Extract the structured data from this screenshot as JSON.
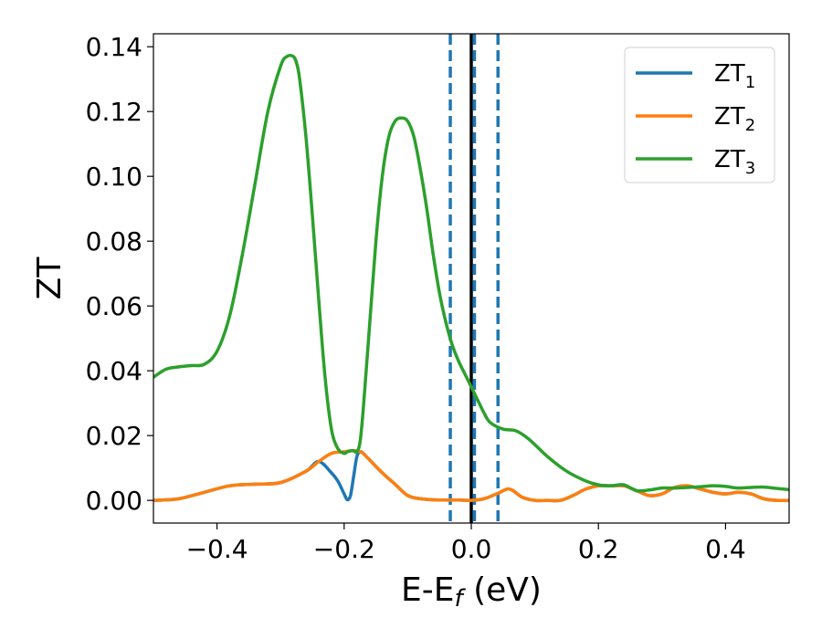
{
  "chart_data": {
    "type": "line",
    "title": "",
    "xlabel": "E-E",
    "xlabel_sub": "f",
    "xlabel_unit": " (eV)",
    "ylabel": "ZT",
    "xlim": [
      -0.5,
      0.5
    ],
    "ylim": [
      -0.007,
      0.144
    ],
    "xticks": [
      -0.4,
      -0.2,
      0.0,
      0.2,
      0.4
    ],
    "xtick_labels": [
      "−0.4",
      "−0.2",
      "0.0",
      "0.2",
      "0.4"
    ],
    "yticks": [
      0.0,
      0.02,
      0.04,
      0.06,
      0.08,
      0.1,
      0.12,
      0.14
    ],
    "ytick_labels": [
      "0.00",
      "0.02",
      "0.04",
      "0.06",
      "0.08",
      "0.10",
      "0.12",
      "0.14"
    ],
    "grid": false,
    "legend_position": "top-right",
    "vlines": [
      {
        "x": 0.0,
        "style": "solid",
        "color": "#000000"
      },
      {
        "x": -0.033,
        "style": "dashed",
        "color": "#1f77b4"
      },
      {
        "x": 0.005,
        "style": "dashed",
        "color": "#1f77b4"
      },
      {
        "x": 0.042,
        "style": "dashed",
        "color": "#1f77b4"
      }
    ],
    "series": [
      {
        "name": "ZT",
        "sub": "1",
        "color": "#1f77b4",
        "x": [
          -0.5,
          -0.46,
          -0.42,
          -0.38,
          -0.34,
          -0.3,
          -0.26,
          -0.24,
          -0.22,
          -0.21,
          -0.2,
          -0.195,
          -0.19,
          -0.185,
          -0.18,
          -0.175,
          -0.17,
          -0.16,
          -0.14,
          -0.12,
          -0.1,
          -0.08,
          -0.06,
          -0.04,
          -0.02,
          0.0,
          0.02,
          0.04,
          0.06,
          0.08,
          0.1,
          0.12,
          0.14,
          0.16,
          0.18,
          0.2,
          0.22,
          0.24,
          0.26,
          0.28,
          0.3,
          0.32,
          0.34,
          0.36,
          0.38,
          0.4,
          0.42,
          0.44,
          0.46,
          0.48,
          0.5
        ],
        "y": [
          0.0,
          0.0005,
          0.0025,
          0.0045,
          0.005,
          0.0055,
          0.009,
          0.012,
          0.0085,
          0.006,
          0.002,
          0.0002,
          0.0015,
          0.0075,
          0.0135,
          0.015,
          0.0145,
          0.0125,
          0.0085,
          0.005,
          0.0015,
          0.0005,
          0.0002,
          0.0001,
          0.0001,
          0.0,
          0.0005,
          0.002,
          0.0035,
          0.001,
          0.0,
          0.0,
          0.0,
          0.0015,
          0.0035,
          0.0045,
          0.0045,
          0.0045,
          0.003,
          0.0015,
          0.002,
          0.004,
          0.0045,
          0.0035,
          0.0025,
          0.002,
          0.0025,
          0.002,
          0.0005,
          0.0,
          0.0
        ]
      },
      {
        "name": "ZT",
        "sub": "2",
        "color": "#ff7f0e",
        "x": [
          -0.5,
          -0.46,
          -0.42,
          -0.38,
          -0.34,
          -0.3,
          -0.26,
          -0.24,
          -0.22,
          -0.2,
          -0.19,
          -0.18,
          -0.175,
          -0.17,
          -0.16,
          -0.14,
          -0.12,
          -0.1,
          -0.08,
          -0.06,
          -0.04,
          -0.02,
          0.0,
          0.02,
          0.04,
          0.06,
          0.08,
          0.1,
          0.12,
          0.14,
          0.16,
          0.18,
          0.2,
          0.22,
          0.24,
          0.26,
          0.28,
          0.3,
          0.32,
          0.34,
          0.36,
          0.38,
          0.4,
          0.42,
          0.44,
          0.46,
          0.48,
          0.5
        ],
        "y": [
          0.0,
          0.0005,
          0.0025,
          0.0045,
          0.005,
          0.0055,
          0.009,
          0.012,
          0.0145,
          0.015,
          0.0153,
          0.0153,
          0.015,
          0.0145,
          0.0125,
          0.0085,
          0.005,
          0.0015,
          0.0005,
          0.0002,
          0.0001,
          0.0001,
          0.0,
          0.0005,
          0.002,
          0.0035,
          0.001,
          0.0,
          0.0,
          0.0,
          0.0015,
          0.0035,
          0.0045,
          0.0045,
          0.0045,
          0.003,
          0.0015,
          0.002,
          0.004,
          0.0045,
          0.0035,
          0.0025,
          0.002,
          0.0025,
          0.002,
          0.0005,
          0.0,
          0.0
        ]
      },
      {
        "name": "ZT",
        "sub": "3",
        "color": "#2ca02c",
        "x": [
          -0.5,
          -0.48,
          -0.46,
          -0.44,
          -0.42,
          -0.4,
          -0.38,
          -0.36,
          -0.34,
          -0.32,
          -0.3,
          -0.29,
          -0.28,
          -0.275,
          -0.27,
          -0.26,
          -0.25,
          -0.24,
          -0.23,
          -0.22,
          -0.21,
          -0.2,
          -0.195,
          -0.19,
          -0.185,
          -0.18,
          -0.175,
          -0.17,
          -0.16,
          -0.15,
          -0.14,
          -0.13,
          -0.12,
          -0.11,
          -0.1,
          -0.09,
          -0.08,
          -0.07,
          -0.06,
          -0.05,
          -0.04,
          -0.03,
          -0.02,
          -0.01,
          0.0,
          0.01,
          0.02,
          0.03,
          0.05,
          0.07,
          0.09,
          0.12,
          0.15,
          0.18,
          0.2,
          0.22,
          0.24,
          0.26,
          0.28,
          0.3,
          0.32,
          0.34,
          0.36,
          0.38,
          0.4,
          0.42,
          0.44,
          0.46,
          0.48,
          0.5
        ],
        "y": [
          0.038,
          0.0405,
          0.0412,
          0.0416,
          0.042,
          0.046,
          0.057,
          0.076,
          0.098,
          0.12,
          0.134,
          0.137,
          0.137,
          0.135,
          0.13,
          0.112,
          0.088,
          0.062,
          0.038,
          0.022,
          0.016,
          0.0145,
          0.015,
          0.0153,
          0.0153,
          0.015,
          0.018,
          0.028,
          0.054,
          0.08,
          0.1,
          0.112,
          0.117,
          0.118,
          0.117,
          0.112,
          0.102,
          0.09,
          0.076,
          0.064,
          0.055,
          0.048,
          0.043,
          0.039,
          0.035,
          0.031,
          0.027,
          0.024,
          0.022,
          0.0215,
          0.019,
          0.0135,
          0.009,
          0.006,
          0.0048,
          0.0045,
          0.0048,
          0.003,
          0.0032,
          0.0038,
          0.0038,
          0.004,
          0.0042,
          0.0045,
          0.0043,
          0.0038,
          0.004,
          0.0041,
          0.0037,
          0.0033
        ]
      }
    ]
  }
}
